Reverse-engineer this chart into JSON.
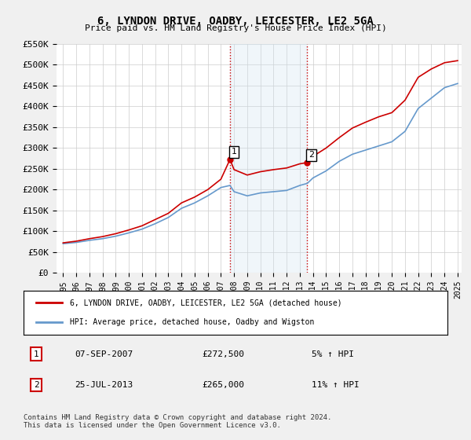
{
  "title": "6, LYNDON DRIVE, OADBY, LEICESTER, LE2 5GA",
  "subtitle": "Price paid vs. HM Land Registry's House Price Index (HPI)",
  "ylabel": "",
  "xlabel": "",
  "ylim": [
    0,
    550000
  ],
  "yticks": [
    0,
    50000,
    100000,
    150000,
    200000,
    250000,
    300000,
    350000,
    400000,
    450000,
    500000,
    550000
  ],
  "ytick_labels": [
    "£0",
    "£50K",
    "£100K",
    "£150K",
    "£200K",
    "£250K",
    "£300K",
    "£350K",
    "£400K",
    "£450K",
    "£500K",
    "£550K"
  ],
  "bg_color": "#f0f0f0",
  "plot_bg_color": "#ffffff",
  "grid_color": "#cccccc",
  "red_color": "#cc0000",
  "blue_color": "#6699cc",
  "highlight_fill": "#d0e4f0",
  "sale1": {
    "x_year": 2007.69,
    "y": 272500,
    "label": "1"
  },
  "sale2": {
    "x_year": 2013.57,
    "y": 265000,
    "label": "2"
  },
  "legend_line1": "6, LYNDON DRIVE, OADBY, LEICESTER, LE2 5GA (detached house)",
  "legend_line2": "HPI: Average price, detached house, Oadby and Wigston",
  "table_rows": [
    {
      "num": "1",
      "date": "07-SEP-2007",
      "price": "£272,500",
      "change": "5% ↑ HPI"
    },
    {
      "num": "2",
      "date": "25-JUL-2013",
      "price": "£265,000",
      "change": "11% ↑ HPI"
    }
  ],
  "footnote": "Contains HM Land Registry data © Crown copyright and database right 2024.\nThis data is licensed under the Open Government Licence v3.0.",
  "hpi_years": [
    1995,
    1996,
    1997,
    1998,
    1999,
    2000,
    2001,
    2002,
    2003,
    2004,
    2005,
    2006,
    2007,
    2007.69,
    2008,
    2009,
    2010,
    2011,
    2012,
    2013,
    2013.57,
    2014,
    2015,
    2016,
    2017,
    2018,
    2019,
    2020,
    2021,
    2022,
    2023,
    2024,
    2025
  ],
  "hpi_values": [
    70000,
    73000,
    78000,
    82000,
    88000,
    96000,
    105000,
    118000,
    133000,
    155000,
    168000,
    185000,
    205000,
    210000,
    195000,
    185000,
    192000,
    195000,
    198000,
    210000,
    215000,
    228000,
    245000,
    268000,
    285000,
    295000,
    305000,
    315000,
    340000,
    395000,
    420000,
    445000,
    455000
  ],
  "red_years": [
    1995,
    1996,
    1997,
    1998,
    1999,
    2000,
    2001,
    2002,
    2003,
    2004,
    2005,
    2006,
    2007,
    2007.69,
    2008,
    2009,
    2010,
    2011,
    2012,
    2013,
    2013.57,
    2014,
    2015,
    2016,
    2017,
    2018,
    2019,
    2020,
    2021,
    2022,
    2023,
    2024,
    2025
  ],
  "red_values": [
    72000,
    76000,
    82000,
    87000,
    94000,
    103000,
    113000,
    128000,
    143000,
    168000,
    182000,
    200000,
    225000,
    272500,
    248000,
    235000,
    243000,
    248000,
    252000,
    262000,
    265000,
    280000,
    300000,
    325000,
    348000,
    362000,
    375000,
    385000,
    415000,
    470000,
    490000,
    505000,
    510000
  ],
  "x_start": 1995,
  "x_end": 2025,
  "xtick_years": [
    1995,
    1996,
    1997,
    1998,
    1999,
    2000,
    2001,
    2002,
    2003,
    2004,
    2005,
    2006,
    2007,
    2008,
    2009,
    2010,
    2011,
    2012,
    2013,
    2014,
    2015,
    2016,
    2017,
    2018,
    2019,
    2020,
    2021,
    2022,
    2023,
    2024,
    2025
  ]
}
